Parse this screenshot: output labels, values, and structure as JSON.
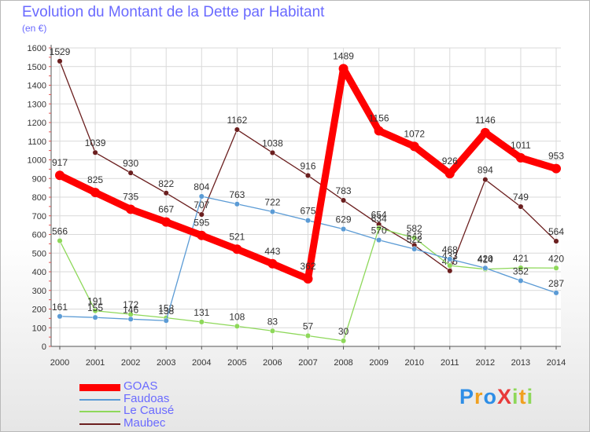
{
  "chart_data": {
    "type": "line",
    "title": "Evolution du Montant de la Dette par Habitant",
    "subtitle": "(en €)",
    "x": [
      "2000",
      "2001",
      "2002",
      "2003",
      "2004",
      "2005",
      "2006",
      "2007",
      "2008",
      "2009",
      "2010",
      "2011",
      "2012",
      "2013",
      "2014"
    ],
    "y_ticks": [
      "0",
      "100",
      "200",
      "300",
      "400",
      "500",
      "600",
      "700",
      "800",
      "900",
      "1000",
      "1100",
      "1200",
      "1300",
      "1400",
      "1500",
      "1600"
    ],
    "ylim": [
      0,
      1600
    ],
    "grid": true,
    "legend_position": "bottom-left",
    "series": [
      {
        "name": "GOAS",
        "color": "#ff0000",
        "values": [
          917,
          825,
          735,
          667,
          595,
          521,
          443,
          362,
          1489,
          1156,
          1072,
          926,
          1146,
          1011,
          953
        ]
      },
      {
        "name": "Faudoas",
        "color": "#5b9bd5",
        "values": [
          161,
          155,
          146,
          138,
          804,
          763,
          722,
          675,
          629,
          570,
          522,
          468,
          420,
          352,
          287
        ]
      },
      {
        "name": "Le Causé",
        "color": "#8ed85a",
        "values": [
          566,
          191,
          172,
          153,
          131,
          108,
          83,
          57,
          30,
          634,
          582,
          433,
          414,
          421,
          420
        ]
      },
      {
        "name": "Maubec",
        "color": "#6b1f1f",
        "values": [
          1529,
          1039,
          930,
          822,
          707,
          1162,
          1038,
          916,
          783,
          654,
          542,
          405,
          894,
          749,
          564
        ]
      }
    ]
  },
  "logo": {
    "text": "ProXiti",
    "letters": [
      "P",
      "r",
      "o",
      "X",
      "i",
      "t",
      "i"
    ],
    "colors": [
      "#2e8ee6",
      "#f0a020",
      "#2e8ee6",
      "#e83a3a",
      "#8ed85a",
      "#f0a020",
      "#8ed85a"
    ]
  }
}
